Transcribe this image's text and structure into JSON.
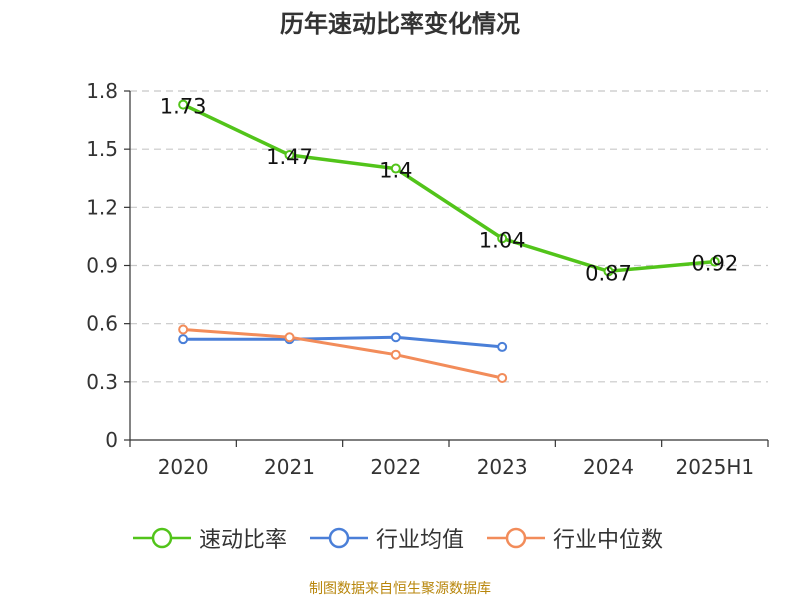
{
  "chart_data": {
    "type": "line",
    "title": "历年速动比率变化情况",
    "categories": [
      "2020",
      "2021",
      "2022",
      "2023",
      "2024",
      "2025H1"
    ],
    "y_ticks": [
      "0",
      "0.3",
      "0.6",
      "0.9",
      "1.2",
      "1.5",
      "1.8"
    ],
    "ylim": [
      0,
      1.8
    ],
    "grid": true,
    "legend_position": "bottom",
    "series": [
      {
        "name": "速动比率",
        "color": "#52c41a",
        "values": [
          1.73,
          1.47,
          1.4,
          1.04,
          0.87,
          0.92
        ],
        "labels": [
          "1.73",
          "1.47",
          "1.4",
          "1.04",
          "0.87",
          "0.92"
        ]
      },
      {
        "name": "行业均值",
        "color": "#4a7fd8",
        "values": [
          0.52,
          0.52,
          0.53,
          0.48,
          null,
          null
        ]
      },
      {
        "name": "行业中位数",
        "color": "#f28c5a",
        "values": [
          0.57,
          0.53,
          0.44,
          0.32,
          null,
          null
        ]
      }
    ]
  },
  "source": "制图数据来自恒生聚源数据库"
}
